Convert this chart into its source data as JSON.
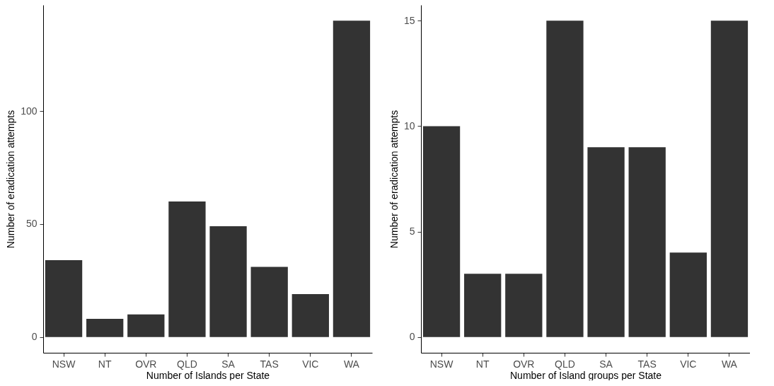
{
  "chart_data": [
    {
      "type": "bar",
      "xlabel": "Number of Islands per State",
      "ylabel": "Number of eradication attempts",
      "categories": [
        "NSW",
        "NT",
        "OVR",
        "QLD",
        "SA",
        "TAS",
        "VIC",
        "WA"
      ],
      "values": [
        34,
        8,
        10,
        60,
        49,
        31,
        19,
        140
      ],
      "color": "#333333",
      "ylim": [
        -7,
        147
      ],
      "yticks": [
        0,
        50,
        100
      ],
      "grid": false
    },
    {
      "type": "bar",
      "xlabel": "Number of Island groups per State",
      "ylabel": "Number of eradication attempts",
      "categories": [
        "NSW",
        "NT",
        "OVR",
        "QLD",
        "SA",
        "TAS",
        "VIC",
        "WA"
      ],
      "values": [
        10,
        3,
        3,
        15,
        9,
        9,
        4,
        15
      ],
      "color": "#333333",
      "ylim": [
        -0.75,
        15.75
      ],
      "yticks": [
        0,
        5,
        10,
        15
      ],
      "grid": false
    }
  ]
}
